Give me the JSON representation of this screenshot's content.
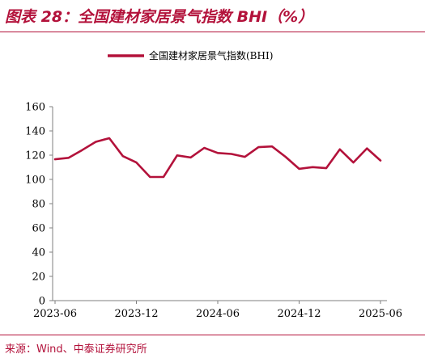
{
  "figure": {
    "title": "图表 28：全国建材家居景气指数 BHI（%）",
    "source": "来源：Wind、中泰证券研究所"
  },
  "colors": {
    "accent": "#b3123b",
    "axis": "#7f7f7f",
    "text": "#000000"
  },
  "chart_data": {
    "type": "line",
    "x_ticks": [
      "2023-06",
      "2023-12",
      "2024-06",
      "2024-12",
      "2025-06"
    ],
    "ylim": [
      0,
      160
    ],
    "y_ticks": [
      "0",
      "20",
      "40",
      "60",
      "80",
      "100",
      "120",
      "140",
      "160"
    ],
    "grid": false,
    "legend_position": "top-center",
    "series": [
      {
        "name": "全国建材家居景气指数(BHI)",
        "color": "#b3123b",
        "x": [
          "2023-06",
          "2023-07",
          "2023-08",
          "2023-09",
          "2023-10",
          "2023-11",
          "2023-12",
          "2024-01",
          "2024-02",
          "2024-03",
          "2024-04",
          "2024-05",
          "2024-06",
          "2024-07",
          "2024-08",
          "2024-09",
          "2024-10",
          "2024-11",
          "2024-12",
          "2025-01",
          "2025-02",
          "2025-03",
          "2025-04",
          "2025-05",
          "2025-06"
        ],
        "values": [
          116.6,
          117.8,
          124.2,
          131.0,
          134.0,
          119.2,
          113.9,
          102.0,
          102.1,
          119.8,
          118.1,
          126.0,
          121.8,
          121.0,
          118.6,
          126.6,
          127.2,
          118.6,
          108.7,
          110.1,
          109.3,
          124.8,
          113.9,
          125.6,
          115.6
        ]
      }
    ]
  }
}
